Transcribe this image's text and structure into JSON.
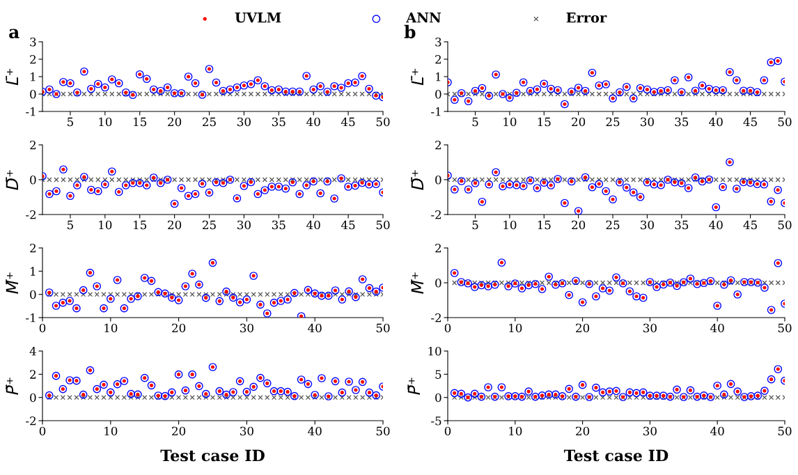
{
  "chart_data": [
    {
      "type": "scatter",
      "title": "a",
      "ylabel": "L̄⁺",
      "legend": "top",
      "xlim": [
        1,
        50
      ],
      "xticks": [
        5,
        10,
        15,
        20,
        25,
        30,
        35,
        40,
        45,
        50
      ],
      "ylim": [
        -1,
        3
      ],
      "yticks": [
        -1,
        0,
        1,
        2,
        3
      ],
      "x": [
        1,
        2,
        3,
        4,
        5,
        6,
        7,
        8,
        9,
        10,
        11,
        12,
        13,
        14,
        15,
        16,
        17,
        18,
        19,
        20,
        21,
        22,
        23,
        24,
        25,
        26,
        27,
        28,
        29,
        30,
        31,
        32,
        33,
        34,
        35,
        36,
        37,
        38,
        39,
        40,
        41,
        42,
        43,
        44,
        45,
        46,
        47,
        48,
        49,
        50
      ],
      "series": [
        {
          "name": "UVLM",
          "color": "#ff0000",
          "marker": "circle",
          "values": [
            0.13,
            0.26,
            0,
            0.69,
            0.62,
            0.09,
            1.29,
            0.3,
            0.58,
            0.38,
            0.84,
            0.62,
            0.09,
            -0.05,
            1.13,
            0.87,
            0.26,
            0.18,
            0.38,
            0.05,
            0.05,
            1.0,
            0.62,
            -0.04,
            1.44,
            0.66,
            0.18,
            0.26,
            0.38,
            0.49,
            0.57,
            0.79,
            0.45,
            0.22,
            0.26,
            0.14,
            0.14,
            0.14,
            1.04,
            0.26,
            0.45,
            0.13,
            0.45,
            0.36,
            0.62,
            0.66,
            1.03,
            0.3,
            -0.09,
            -0.18
          ]
        },
        {
          "name": "ANN",
          "color": "#0000ff",
          "marker": "circle",
          "values": [
            0.13,
            0.26,
            0,
            0.69,
            0.62,
            0.09,
            1.29,
            0.3,
            0.58,
            0.38,
            0.84,
            0.62,
            0.09,
            -0.05,
            1.13,
            0.87,
            0.26,
            0.18,
            0.38,
            0.05,
            0.05,
            1.0,
            0.62,
            -0.04,
            1.44,
            0.66,
            0.18,
            0.26,
            0.38,
            0.49,
            0.57,
            0.79,
            0.45,
            0.22,
            0.26,
            0.14,
            0.14,
            0.14,
            1.04,
            0.26,
            0.45,
            0.13,
            0.45,
            0.36,
            0.62,
            0.66,
            1.03,
            0.3,
            -0.09,
            -0.18
          ]
        },
        {
          "name": "Error",
          "color": "#555555",
          "marker": "cross",
          "values": [
            0,
            0,
            0,
            0,
            0,
            0,
            0,
            0,
            0,
            0,
            0,
            0,
            0,
            0,
            0,
            0,
            0,
            0,
            0,
            0,
            0,
            0,
            0,
            0,
            0,
            0,
            0,
            0,
            0,
            0,
            0,
            0,
            0,
            0,
            0,
            0,
            0,
            0,
            0,
            0,
            0,
            0,
            0,
            0,
            0,
            0,
            0,
            0,
            0,
            0
          ]
        }
      ]
    },
    {
      "type": "scatter",
      "title": "b",
      "ylabel": "L̄⁺",
      "xlim": [
        1,
        50
      ],
      "xticks": [
        5,
        10,
        15,
        20,
        25,
        30,
        35,
        40,
        45,
        50
      ],
      "ylim": [
        -1,
        3
      ],
      "yticks": [
        -1,
        0,
        1,
        2,
        3
      ],
      "x": [
        1,
        2,
        3,
        4,
        5,
        6,
        7,
        8,
        9,
        10,
        11,
        12,
        13,
        14,
        15,
        16,
        17,
        18,
        19,
        20,
        21,
        22,
        23,
        24,
        25,
        26,
        27,
        28,
        29,
        30,
        31,
        32,
        33,
        34,
        35,
        36,
        37,
        38,
        39,
        40,
        41,
        42,
        43,
        44,
        45,
        46,
        47,
        48,
        49,
        50
      ],
      "series": [
        {
          "name": "UVLM",
          "color": "#ff0000",
          "marker": "circle",
          "values": [
            0.67,
            -0.33,
            0.05,
            -0.41,
            0.18,
            0.34,
            -0.1,
            1.12,
            0,
            -0.21,
            0.07,
            0.67,
            0.18,
            0.27,
            0.59,
            0.3,
            0.22,
            -0.58,
            0.14,
            0.36,
            0.18,
            1.22,
            0.49,
            0.56,
            -0.25,
            0.1,
            0.41,
            -0.25,
            0.34,
            0.26,
            0.12,
            0.18,
            0.22,
            0.79,
            0.11,
            0.96,
            0.19,
            0.49,
            0.3,
            0.22,
            0.22,
            1.26,
            0.79,
            0.19,
            0.19,
            0.11,
            0.79,
            1.82,
            1.9,
            0.71
          ]
        },
        {
          "name": "ANN",
          "color": "#0000ff",
          "marker": "circle",
          "values": [
            0.67,
            -0.33,
            0.05,
            -0.41,
            0.18,
            0.34,
            -0.1,
            1.12,
            0,
            -0.21,
            0.07,
            0.67,
            0.18,
            0.27,
            0.59,
            0.3,
            0.22,
            -0.58,
            0.14,
            0.36,
            0.18,
            1.22,
            0.49,
            0.56,
            -0.25,
            0.1,
            0.41,
            -0.25,
            0.34,
            0.26,
            0.12,
            0.18,
            0.22,
            0.79,
            0.11,
            0.96,
            0.19,
            0.49,
            0.3,
            0.22,
            0.22,
            1.26,
            0.79,
            0.19,
            0.19,
            0.11,
            0.79,
            1.82,
            1.9,
            0.71
          ]
        },
        {
          "name": "Error",
          "color": "#555555",
          "marker": "cross",
          "values": [
            0,
            0,
            0,
            0,
            0,
            0,
            0,
            0,
            0,
            0,
            0,
            0,
            0,
            0,
            0,
            0,
            0,
            0,
            0,
            0,
            0,
            0,
            0,
            0,
            0,
            0,
            0,
            0,
            0,
            0,
            0,
            0,
            0,
            0,
            0,
            0,
            0,
            0,
            0,
            0,
            0,
            0,
            0,
            0,
            0,
            0,
            0,
            0,
            0,
            0
          ]
        }
      ]
    },
    {
      "type": "scatter",
      "ylabel": "D̄⁺",
      "xlim": [
        1,
        50
      ],
      "xticks": [
        5,
        10,
        15,
        20,
        25,
        30,
        35,
        40,
        45,
        50
      ],
      "ylim": [
        -2,
        2
      ],
      "yticks": [
        -2,
        0,
        2
      ],
      "x": [
        1,
        2,
        3,
        4,
        5,
        6,
        7,
        8,
        9,
        10,
        11,
        12,
        13,
        14,
        15,
        16,
        17,
        18,
        19,
        20,
        21,
        22,
        23,
        24,
        25,
        26,
        27,
        28,
        29,
        30,
        31,
        32,
        33,
        34,
        35,
        36,
        37,
        38,
        39,
        40,
        41,
        42,
        43,
        44,
        45,
        46,
        47,
        48,
        49,
        50
      ],
      "series": [
        {
          "name": "UVLM",
          "color": "#ff0000",
          "marker": "circle",
          "values": [
            0.2,
            -0.82,
            -0.66,
            0.59,
            -0.93,
            -0.32,
            0.16,
            -0.58,
            -0.66,
            -0.27,
            0.47,
            -0.7,
            -0.32,
            -0.19,
            -0.19,
            -0.32,
            0.12,
            -0.19,
            0,
            -1.38,
            -0.48,
            -0.93,
            -0.82,
            -0.23,
            -0.74,
            -0.15,
            -0.19,
            0,
            -1.07,
            -0.36,
            -0.14,
            -0.82,
            -0.6,
            -0.4,
            -0.4,
            -0.51,
            -0.15,
            -0.82,
            -0.32,
            -0.1,
            -0.78,
            -0.1,
            -1.08,
            0.08,
            -0.4,
            -0.34,
            -0.18,
            -0.27,
            -0.25,
            -0.73
          ]
        },
        {
          "name": "ANN",
          "color": "#0000ff",
          "marker": "circle",
          "values": [
            0.2,
            -0.82,
            -0.66,
            0.59,
            -0.93,
            -0.32,
            0.16,
            -0.58,
            -0.66,
            -0.27,
            0.47,
            -0.7,
            -0.32,
            -0.19,
            -0.19,
            -0.32,
            0.12,
            -0.19,
            0,
            -1.38,
            -0.48,
            -0.93,
            -0.82,
            -0.23,
            -0.74,
            -0.15,
            -0.19,
            0,
            -1.07,
            -0.36,
            -0.14,
            -0.82,
            -0.6,
            -0.4,
            -0.4,
            -0.51,
            -0.15,
            -0.82,
            -0.32,
            -0.1,
            -0.78,
            -0.1,
            -1.08,
            0.08,
            -0.4,
            -0.34,
            -0.18,
            -0.27,
            -0.25,
            -0.73
          ]
        },
        {
          "name": "Error",
          "color": "#555555",
          "marker": "cross",
          "values": [
            0,
            0,
            0,
            0,
            0,
            0,
            0,
            0,
            0,
            0,
            0,
            0,
            0,
            0,
            0,
            0,
            0,
            0,
            0,
            0,
            0,
            0,
            0,
            0,
            0,
            0,
            0,
            0,
            0,
            0,
            0,
            0,
            0,
            0,
            0,
            0,
            0,
            0,
            0,
            0,
            0,
            0,
            0,
            0,
            0,
            0,
            0,
            0,
            0,
            0
          ]
        }
      ]
    },
    {
      "type": "scatter",
      "ylabel": "D̄⁺",
      "xlim": [
        1,
        50
      ],
      "xticks": [
        5,
        10,
        15,
        20,
        25,
        30,
        35,
        40,
        45,
        50
      ],
      "ylim": [
        -2,
        2
      ],
      "yticks": [
        -2,
        0,
        2
      ],
      "x": [
        1,
        2,
        3,
        4,
        5,
        6,
        7,
        8,
        9,
        10,
        11,
        12,
        13,
        14,
        15,
        16,
        17,
        18,
        19,
        20,
        21,
        22,
        23,
        24,
        25,
        26,
        27,
        28,
        29,
        30,
        31,
        32,
        33,
        34,
        35,
        36,
        37,
        38,
        39,
        40,
        41,
        42,
        43,
        44,
        45,
        46,
        47,
        48,
        49,
        50
      ],
      "series": [
        {
          "name": "UVLM",
          "color": "#ff0000",
          "marker": "circle",
          "values": [
            0.24,
            -0.56,
            -0.08,
            -0.56,
            -0.2,
            -1.27,
            -0.27,
            0.43,
            -0.38,
            -0.27,
            -0.31,
            -0.36,
            -0.04,
            -0.48,
            -0.17,
            -0.32,
            0.04,
            -1.34,
            -0.1,
            -1.8,
            0.14,
            -0.43,
            -0.24,
            -0.66,
            -1.13,
            -0.15,
            -0.45,
            -0.73,
            -0.99,
            -0.15,
            -0.27,
            -0.31,
            0,
            -0.15,
            -0.2,
            -0.48,
            0.13,
            -0.1,
            0.01,
            -1.58,
            -0.42,
            1.01,
            -0.52,
            -0.14,
            -0.17,
            -0.25,
            -0.27,
            -1.25,
            -0.59,
            -1.34
          ]
        },
        {
          "name": "ANN",
          "color": "#0000ff",
          "marker": "circle",
          "values": [
            0.24,
            -0.56,
            -0.08,
            -0.56,
            -0.2,
            -1.27,
            -0.27,
            0.43,
            -0.38,
            -0.27,
            -0.31,
            -0.36,
            -0.04,
            -0.48,
            -0.17,
            -0.32,
            0.04,
            -1.34,
            -0.1,
            -1.8,
            0.14,
            -0.43,
            -0.24,
            -0.66,
            -1.13,
            -0.15,
            -0.45,
            -0.73,
            -0.99,
            -0.15,
            -0.27,
            -0.31,
            0,
            -0.15,
            -0.2,
            -0.48,
            0.13,
            -0.1,
            0.01,
            -1.58,
            -0.42,
            1.01,
            -0.52,
            -0.14,
            -0.17,
            -0.25,
            -0.27,
            -1.25,
            -0.59,
            -1.34
          ]
        },
        {
          "name": "Error",
          "color": "#555555",
          "marker": "cross",
          "values": [
            0,
            0,
            0,
            0,
            0,
            0,
            0,
            0,
            0,
            0,
            0,
            0,
            0,
            0,
            0,
            0,
            0,
            0,
            0,
            0,
            0,
            0,
            0,
            0,
            0,
            0,
            0,
            0,
            0,
            0,
            0,
            0,
            0,
            0,
            0,
            0,
            0,
            0,
            0,
            0,
            0,
            0,
            0,
            0,
            0,
            0,
            0,
            0,
            0,
            0
          ]
        }
      ]
    },
    {
      "type": "scatter",
      "ylabel": "M̄⁺",
      "xlim": [
        0,
        50
      ],
      "xticks": [
        0,
        10,
        20,
        30,
        40,
        50
      ],
      "ylim": [
        -1,
        2
      ],
      "yticks": [
        -1,
        0,
        1,
        2
      ],
      "x": [
        1,
        2,
        3,
        4,
        5,
        6,
        7,
        8,
        9,
        10,
        11,
        12,
        13,
        14,
        15,
        16,
        17,
        18,
        19,
        20,
        21,
        22,
        23,
        24,
        25,
        26,
        27,
        28,
        29,
        30,
        31,
        32,
        33,
        34,
        35,
        36,
        37,
        38,
        39,
        40,
        41,
        42,
        43,
        44,
        45,
        46,
        47,
        48,
        49,
        50
      ],
      "series": [
        {
          "name": "UVLM",
          "color": "#ff0000",
          "marker": "circle",
          "values": [
            0.08,
            -0.49,
            -0.36,
            -0.28,
            -0.6,
            0.18,
            0.93,
            0.35,
            -0.6,
            -0.19,
            0.62,
            -0.6,
            -0.19,
            -0.08,
            0.71,
            0.58,
            0.1,
            0.04,
            -0.14,
            -0.25,
            0.35,
            0.89,
            0.42,
            -0.15,
            1.36,
            -0.29,
            0.12,
            -0.14,
            -0.34,
            -0.22,
            0.8,
            -0.44,
            -0.82,
            -0.36,
            -0.28,
            -0.22,
            0.06,
            -0.94,
            0.19,
            0.04,
            -0.06,
            -0.06,
            0.17,
            -0.22,
            0.13,
            -0.12,
            0.65,
            0.27,
            0.12,
            0.29
          ]
        },
        {
          "name": "ANN",
          "color": "#0000ff",
          "marker": "circle",
          "values": [
            0.08,
            -0.49,
            -0.36,
            -0.28,
            -0.6,
            0.18,
            0.93,
            0.35,
            -0.6,
            -0.19,
            0.62,
            -0.6,
            -0.19,
            -0.08,
            0.71,
            0.58,
            0.1,
            0.04,
            -0.14,
            -0.25,
            0.35,
            0.89,
            0.42,
            -0.15,
            1.36,
            -0.29,
            0.12,
            -0.14,
            -0.34,
            -0.22,
            0.8,
            -0.44,
            -0.82,
            -0.36,
            -0.28,
            -0.22,
            0.06,
            -0.94,
            0.19,
            0.04,
            -0.06,
            -0.06,
            0.17,
            -0.22,
            0.13,
            -0.12,
            0.65,
            0.27,
            0.12,
            0.29
          ]
        },
        {
          "name": "Error",
          "color": "#555555",
          "marker": "cross",
          "values": [
            0,
            0,
            0,
            0,
            0,
            0,
            0,
            0,
            0,
            0,
            0,
            0,
            0,
            0,
            0,
            0,
            0,
            0,
            0,
            0,
            0,
            0,
            0,
            0,
            0,
            0,
            0,
            0,
            0,
            0,
            0,
            0,
            0,
            0,
            0,
            0,
            0,
            0,
            0,
            0,
            0,
            0,
            0,
            0,
            0,
            0,
            0,
            0,
            0,
            0
          ]
        }
      ]
    },
    {
      "type": "scatter",
      "ylabel": "M̄⁺",
      "xlim": [
        0,
        50
      ],
      "xticks": [
        0,
        10,
        20,
        30,
        40,
        50
      ],
      "ylim": [
        -2,
        2
      ],
      "yticks": [
        -2,
        0,
        2
      ],
      "x": [
        1,
        2,
        3,
        4,
        5,
        6,
        7,
        8,
        9,
        10,
        11,
        12,
        13,
        14,
        15,
        16,
        17,
        18,
        19,
        20,
        21,
        22,
        23,
        24,
        25,
        26,
        27,
        28,
        29,
        30,
        31,
        32,
        33,
        34,
        35,
        36,
        37,
        38,
        39,
        40,
        41,
        42,
        43,
        44,
        45,
        46,
        47,
        48,
        49,
        50
      ],
      "series": [
        {
          "name": "UVLM",
          "color": "#ff0000",
          "marker": "circle",
          "values": [
            0.56,
            0.04,
            -0.03,
            -0.24,
            -0.14,
            -0.2,
            -0.11,
            1.16,
            -0.2,
            -0.04,
            -0.32,
            -0.14,
            -0.07,
            -0.36,
            0.35,
            -0.11,
            -0.03,
            -0.7,
            0.11,
            -1.12,
            -0.07,
            -0.78,
            -0.32,
            -0.45,
            0.31,
            -0.03,
            -0.49,
            -0.78,
            -0.86,
            0.04,
            -0.24,
            -0.1,
            0.01,
            -0.18,
            0.03,
            0.24,
            -0.07,
            -0.01,
            0.1,
            -1.32,
            -0.11,
            0.14,
            -0.67,
            0.04,
            0.04,
            0.01,
            -0.28,
            -1.56,
            1.13,
            -1.2
          ]
        },
        {
          "name": "ANN",
          "color": "#0000ff",
          "marker": "circle",
          "values": [
            0.56,
            0.04,
            -0.03,
            -0.24,
            -0.14,
            -0.2,
            -0.11,
            1.16,
            -0.2,
            -0.04,
            -0.32,
            -0.14,
            -0.07,
            -0.36,
            0.35,
            -0.11,
            -0.03,
            -0.7,
            0.11,
            -1.12,
            -0.07,
            -0.78,
            -0.32,
            -0.45,
            0.31,
            -0.03,
            -0.49,
            -0.78,
            -0.86,
            0.04,
            -0.24,
            -0.1,
            0.01,
            -0.18,
            0.03,
            0.24,
            -0.07,
            -0.01,
            0.1,
            -1.32,
            -0.11,
            0.14,
            -0.67,
            0.04,
            0.04,
            0.01,
            -0.28,
            -1.56,
            1.13,
            -1.2
          ]
        },
        {
          "name": "Error",
          "color": "#555555",
          "marker": "cross",
          "values": [
            0,
            0,
            0,
            0,
            0,
            0,
            0,
            0,
            0,
            0,
            0,
            0,
            0,
            0,
            0,
            0,
            0,
            0,
            0,
            0,
            0,
            0,
            0,
            0,
            0,
            0,
            0,
            0,
            0,
            0,
            0,
            0,
            0,
            0,
            0,
            0,
            0,
            0,
            0,
            0,
            0,
            0,
            0,
            0,
            0,
            0,
            0,
            0,
            0,
            0
          ]
        }
      ]
    },
    {
      "type": "scatter",
      "ylabel": "P̄⁺",
      "xlabel": "Test case ID",
      "xlim": [
        0,
        50
      ],
      "xticks": [
        0,
        10,
        20,
        30,
        40,
        50
      ],
      "ylim": [
        -2,
        4
      ],
      "yticks": [
        -2,
        0,
        2,
        4
      ],
      "x": [
        1,
        2,
        3,
        4,
        5,
        6,
        7,
        8,
        9,
        10,
        11,
        12,
        13,
        14,
        15,
        16,
        17,
        18,
        19,
        20,
        21,
        22,
        23,
        24,
        25,
        26,
        27,
        28,
        29,
        30,
        31,
        32,
        33,
        34,
        35,
        36,
        37,
        38,
        39,
        40,
        41,
        42,
        43,
        44,
        45,
        46,
        47,
        48,
        49,
        50
      ],
      "series": [
        {
          "name": "UVLM",
          "color": "#ff0000",
          "marker": "circle",
          "values": [
            0.18,
            1.86,
            0.72,
            1.48,
            1.44,
            0.24,
            2.34,
            0.72,
            1.1,
            0.44,
            1.14,
            1.42,
            0.3,
            0.26,
            1.68,
            1.04,
            0.16,
            0.12,
            0.44,
            1.98,
            0.6,
            1.98,
            0.98,
            0.3,
            2.62,
            0.54,
            0.24,
            0.46,
            1.4,
            0.48,
            0.92,
            1.68,
            1.22,
            0.54,
            0.54,
            0.48,
            0.12,
            1.54,
            1.16,
            0.22,
            1.66,
            0.1,
            1.4,
            0.42,
            1.36,
            0.64,
            1.34,
            0.42,
            0.18,
            0.94
          ]
        },
        {
          "name": "ANN",
          "color": "#0000ff",
          "marker": "circle",
          "values": [
            0.18,
            1.86,
            0.72,
            1.48,
            1.44,
            0.24,
            2.34,
            0.72,
            1.1,
            0.44,
            1.14,
            1.42,
            0.3,
            0.26,
            1.68,
            1.04,
            0.16,
            0.12,
            0.44,
            1.98,
            0.6,
            1.98,
            0.98,
            0.3,
            2.62,
            0.54,
            0.24,
            0.46,
            1.4,
            0.48,
            0.92,
            1.68,
            1.22,
            0.54,
            0.54,
            0.48,
            0.12,
            1.54,
            1.16,
            0.22,
            1.66,
            0.1,
            1.4,
            0.42,
            1.36,
            0.64,
            1.34,
            0.42,
            0.18,
            0.94
          ]
        },
        {
          "name": "Error",
          "color": "#555555",
          "marker": "cross",
          "values": [
            0,
            0,
            0,
            0,
            0,
            0,
            0,
            0,
            0,
            0,
            0,
            0,
            0,
            0,
            0,
            0,
            0,
            0,
            0,
            0,
            0,
            0,
            0,
            0,
            0,
            0,
            0,
            0,
            0,
            0,
            0,
            0,
            0,
            0,
            0,
            0,
            0,
            0,
            0,
            0,
            0,
            0,
            0,
            0,
            0,
            0,
            0,
            0,
            0,
            0
          ]
        }
      ]
    },
    {
      "type": "scatter",
      "ylabel": "P̄⁺",
      "xlabel": "Test case ID",
      "xlim": [
        0,
        50
      ],
      "xticks": [
        0,
        10,
        20,
        30,
        40,
        50
      ],
      "ylim": [
        -5,
        10
      ],
      "yticks": [
        -5,
        0,
        5,
        10
      ],
      "x": [
        1,
        2,
        3,
        4,
        5,
        6,
        7,
        8,
        9,
        10,
        11,
        12,
        13,
        14,
        15,
        16,
        17,
        18,
        19,
        20,
        21,
        22,
        23,
        24,
        25,
        26,
        27,
        28,
        29,
        30,
        31,
        32,
        33,
        34,
        35,
        36,
        37,
        38,
        39,
        40,
        41,
        42,
        43,
        44,
        45,
        46,
        47,
        48,
        49,
        50
      ],
      "series": [
        {
          "name": "UVLM",
          "color": "#ff0000",
          "marker": "circle",
          "values": [
            0.95,
            0.8,
            0,
            0.8,
            0.16,
            2.2,
            0.16,
            2.2,
            0.26,
            0.26,
            0.16,
            1.27,
            0.16,
            0.42,
            0.63,
            0.63,
            0.26,
            1.85,
            0.16,
            2.7,
            0.1,
            2.1,
            1.1,
            1.27,
            1.38,
            0.1,
            1.1,
            0.95,
            1.1,
            0.37,
            0.37,
            0.37,
            0.16,
            1.7,
            0.1,
            1.53,
            0.16,
            0.42,
            0.1,
            2.54,
            0.63,
            2.9,
            1.27,
            0.1,
            0.26,
            0.37,
            1.43,
            3.9,
            6.1,
            3.6
          ]
        },
        {
          "name": "ANN",
          "color": "#0000ff",
          "marker": "circle",
          "values": [
            0.95,
            0.8,
            0,
            0.8,
            0.16,
            2.2,
            0.16,
            2.2,
            0.26,
            0.26,
            0.16,
            1.27,
            0.16,
            0.42,
            0.63,
            0.63,
            0.26,
            1.85,
            0.16,
            2.7,
            0.1,
            2.1,
            1.1,
            1.27,
            1.38,
            0.1,
            1.1,
            0.95,
            1.1,
            0.37,
            0.37,
            0.37,
            0.16,
            1.7,
            0.1,
            1.53,
            0.16,
            0.42,
            0.1,
            2.54,
            0.63,
            2.9,
            1.27,
            0.1,
            0.26,
            0.37,
            1.43,
            3.9,
            6.1,
            3.6
          ]
        },
        {
          "name": "Error",
          "color": "#555555",
          "marker": "cross",
          "values": [
            0,
            0,
            0,
            0,
            0,
            0,
            0,
            0,
            0,
            0,
            0,
            0,
            0,
            0,
            0,
            0,
            0,
            0,
            0,
            0,
            0,
            0,
            0,
            0,
            0,
            0,
            0,
            0,
            0,
            0,
            0,
            0,
            0,
            0,
            0,
            0,
            0,
            0,
            0,
            0,
            0,
            0,
            0,
            0,
            0,
            0,
            0,
            0,
            0,
            0
          ]
        }
      ]
    }
  ]
}
